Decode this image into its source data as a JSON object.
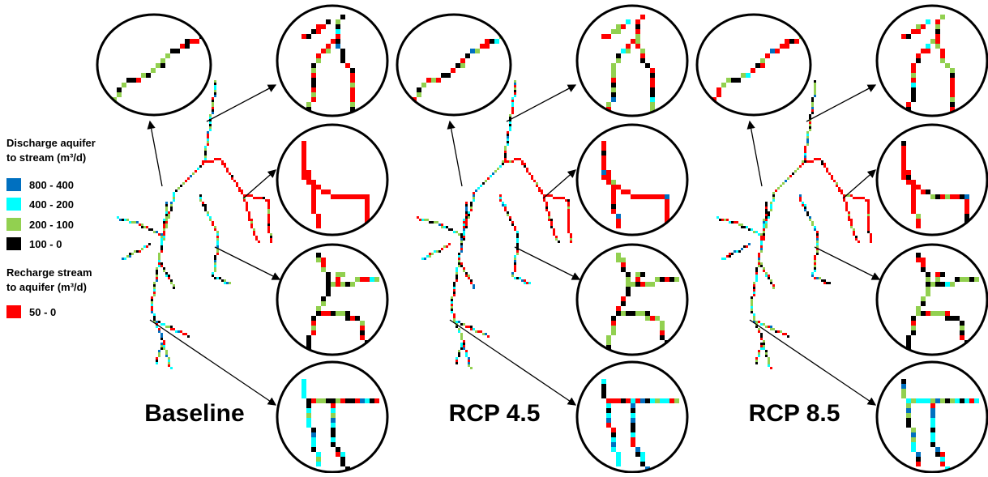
{
  "legend": {
    "discharge_title": [
      "Discharge aquifer",
      "to stream (m³/d)"
    ],
    "discharge_items": [
      {
        "label": "800 - 400",
        "color": "#0070c0"
      },
      {
        "label": "400 - 200",
        "color": "#00ffff"
      },
      {
        "label": "200 - 100",
        "color": "#92d050"
      },
      {
        "label": "100 -   0",
        "color": "#000000"
      }
    ],
    "recharge_title": [
      "Recharge stream",
      "to aquifer (m³/d)"
    ],
    "recharge_items": [
      {
        "label": "50 -   0",
        "color": "#ff0000"
      }
    ]
  },
  "panels": [
    {
      "label": "Baseline"
    },
    {
      "label": "RCP 4.5"
    },
    {
      "label": "RCP 8.5"
    }
  ]
}
